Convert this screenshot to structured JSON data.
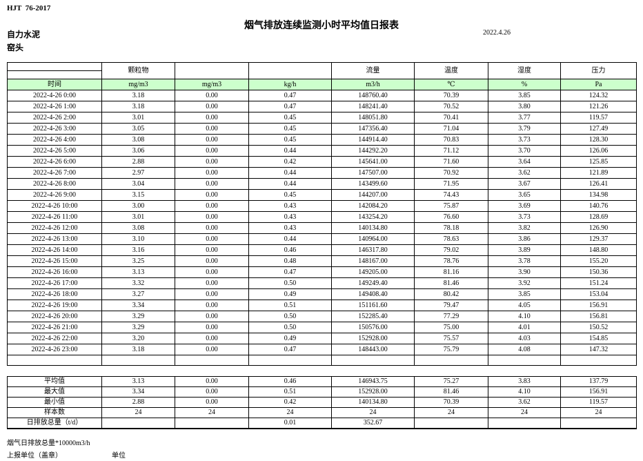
{
  "meta": {
    "standard": "HJT  76-2017",
    "title": "烟气排放连续监测小时平均值日报表",
    "company": "自力水泥",
    "location": "窑头",
    "date": "2022.4.26"
  },
  "colors": {
    "header_fill": "#ccffcc"
  },
  "table": {
    "group_headers": [
      "颗粒物",
      "",
      "",
      "流量",
      "温度",
      "湿度",
      "压力"
    ],
    "unit_headers": [
      "时间",
      "mg/m3",
      "mg/m3",
      "kg/h",
      "m3/h",
      "℃",
      "%",
      "Pa"
    ],
    "rows": [
      {
        "time": "2022-4-26 0:00",
        "values": [
          "3.18",
          "0.00",
          "0.47",
          "148760.40",
          "70.39",
          "3.85",
          "124.32"
        ]
      },
      {
        "time": "2022-4-26 1:00",
        "values": [
          "3.18",
          "0.00",
          "0.47",
          "148241.40",
          "70.52",
          "3.80",
          "121.26"
        ]
      },
      {
        "time": "2022-4-26 2:00",
        "values": [
          "3.01",
          "0.00",
          "0.45",
          "148051.80",
          "70.41",
          "3.77",
          "119.57"
        ]
      },
      {
        "time": "2022-4-26 3:00",
        "values": [
          "3.05",
          "0.00",
          "0.45",
          "147356.40",
          "71.04",
          "3.79",
          "127.49"
        ]
      },
      {
        "time": "2022-4-26 4:00",
        "values": [
          "3.08",
          "0.00",
          "0.45",
          "144914.40",
          "70.83",
          "3.73",
          "128.30"
        ]
      },
      {
        "time": "2022-4-26 5:00",
        "values": [
          "3.06",
          "0.00",
          "0.44",
          "144292.20",
          "71.12",
          "3.70",
          "126.06"
        ]
      },
      {
        "time": "2022-4-26 6:00",
        "values": [
          "2.88",
          "0.00",
          "0.42",
          "145641.00",
          "71.60",
          "3.64",
          "125.85"
        ]
      },
      {
        "time": "2022-4-26 7:00",
        "values": [
          "2.97",
          "0.00",
          "0.44",
          "147507.00",
          "70.92",
          "3.62",
          "121.89"
        ]
      },
      {
        "time": "2022-4-26 8:00",
        "values": [
          "3.04",
          "0.00",
          "0.44",
          "143499.60",
          "71.95",
          "3.67",
          "126.41"
        ]
      },
      {
        "time": "2022-4-26 9:00",
        "values": [
          "3.15",
          "0.00",
          "0.45",
          "144207.00",
          "74.43",
          "3.65",
          "134.98"
        ]
      },
      {
        "time": "2022-4-26 10:00",
        "values": [
          "3.00",
          "0.00",
          "0.43",
          "142084.20",
          "75.87",
          "3.69",
          "140.76"
        ]
      },
      {
        "time": "2022-4-26 11:00",
        "values": [
          "3.01",
          "0.00",
          "0.43",
          "143254.20",
          "76.60",
          "3.73",
          "128.69"
        ]
      },
      {
        "time": "2022-4-26 12:00",
        "values": [
          "3.08",
          "0.00",
          "0.43",
          "140134.80",
          "78.18",
          "3.82",
          "126.90"
        ]
      },
      {
        "time": "2022-4-26 13:00",
        "values": [
          "3.10",
          "0.00",
          "0.44",
          "140964.00",
          "78.63",
          "3.86",
          "129.37"
        ]
      },
      {
        "time": "2022-4-26 14:00",
        "values": [
          "3.16",
          "0.00",
          "0.46",
          "146317.80",
          "79.02",
          "3.89",
          "148.80"
        ]
      },
      {
        "time": "2022-4-26 15:00",
        "values": [
          "3.25",
          "0.00",
          "0.48",
          "148167.00",
          "78.76",
          "3.78",
          "155.20"
        ]
      },
      {
        "time": "2022-4-26 16:00",
        "values": [
          "3.13",
          "0.00",
          "0.47",
          "149205.00",
          "81.16",
          "3.90",
          "150.36"
        ]
      },
      {
        "time": "2022-4-26 17:00",
        "values": [
          "3.32",
          "0.00",
          "0.50",
          "149249.40",
          "81.46",
          "3.92",
          "151.24"
        ]
      },
      {
        "time": "2022-4-26 18:00",
        "values": [
          "3.27",
          "0.00",
          "0.49",
          "149408.40",
          "80.42",
          "3.85",
          "153.04"
        ]
      },
      {
        "time": "2022-4-26 19:00",
        "values": [
          "3.34",
          "0.00",
          "0.51",
          "151161.60",
          "79.47",
          "4.05",
          "156.91"
        ]
      },
      {
        "time": "2022-4-26 20:00",
        "values": [
          "3.29",
          "0.00",
          "0.50",
          "152285.40",
          "77.29",
          "4.10",
          "156.81"
        ]
      },
      {
        "time": "2022-4-26 21:00",
        "values": [
          "3.29",
          "0.00",
          "0.50",
          "150576.00",
          "75.00",
          "4.01",
          "150.52"
        ]
      },
      {
        "time": "2022-4-26 22:00",
        "values": [
          "3.20",
          "0.00",
          "0.49",
          "152928.00",
          "75.57",
          "4.03",
          "154.85"
        ]
      },
      {
        "time": "2022-4-26 23:00",
        "values": [
          "3.18",
          "0.00",
          "0.47",
          "148443.00",
          "75.79",
          "4.08",
          "147.32"
        ]
      },
      {
        "time": "",
        "values": [
          "",
          "",
          "",
          "",
          "",
          "",
          ""
        ]
      }
    ],
    "summary": [
      {
        "label": "平均值",
        "values": [
          "3.13",
          "0.00",
          "0.46",
          "146943.75",
          "75.27",
          "3.83",
          "137.79"
        ]
      },
      {
        "label": "最大值",
        "values": [
          "3.34",
          "0.00",
          "0.51",
          "152928.00",
          "81.46",
          "4.10",
          "156.91"
        ]
      },
      {
        "label": "最小值",
        "values": [
          "2.88",
          "0.00",
          "0.42",
          "140134.80",
          "70.39",
          "3.62",
          "119.57"
        ]
      },
      {
        "label": "样本数",
        "values": [
          "24",
          "24",
          "24",
          "24",
          "24",
          "24",
          "24"
        ]
      },
      {
        "label": "日排放总量（t/d）",
        "values": [
          "",
          "",
          "0.01",
          "352.67",
          "",
          "",
          ""
        ]
      }
    ]
  },
  "footer": {
    "note": "烟气日排放总量*10000m3/h",
    "report_unit_label": "上报单位（盖章）",
    "unit_label": "单位"
  }
}
